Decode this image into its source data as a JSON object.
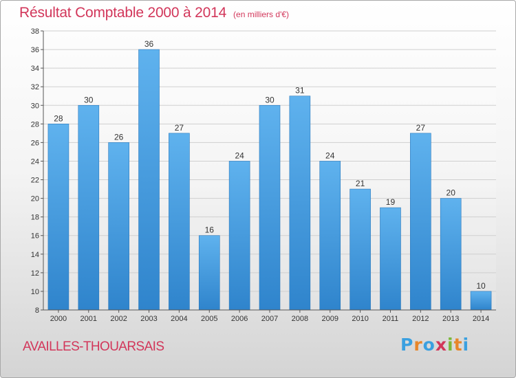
{
  "header": {
    "title": "Résultat Comptable 2000 à 2014",
    "unit": "(en milliers d'€)"
  },
  "footer": {
    "town": "AVAILLES-THOUARSAIS",
    "logo_letters": [
      "P",
      "r",
      "o",
      "x",
      "i",
      "t",
      "i"
    ],
    "logo_colors": [
      "#3aa0e0",
      "#e8862a",
      "#3aa0e0",
      "#d2365a",
      "#7cb83a",
      "#e8862a",
      "#3aa0e0"
    ]
  },
  "colors": {
    "title": "#d2365a",
    "bar_top": "#5fb2ee",
    "bar_bottom": "#2f84cc",
    "grid": "#cfcfcf"
  },
  "chart_data": {
    "type": "bar",
    "title": "Résultat Comptable 2000 à 2014",
    "subtitle": "(en milliers d'€)",
    "categories": [
      "2000",
      "2001",
      "2002",
      "2003",
      "2004",
      "2005",
      "2006",
      "2007",
      "2008",
      "2009",
      "2010",
      "2011",
      "2012",
      "2013",
      "2014"
    ],
    "values": [
      28,
      30,
      26,
      36,
      27,
      16,
      24,
      30,
      31,
      24,
      21,
      19,
      27,
      20,
      10
    ],
    "ylim": [
      8,
      38
    ],
    "yticks": [
      8,
      10,
      12,
      14,
      16,
      18,
      20,
      22,
      24,
      26,
      28,
      30,
      32,
      34,
      36,
      38
    ],
    "xlabel": "",
    "ylabel": "",
    "grid": true
  }
}
